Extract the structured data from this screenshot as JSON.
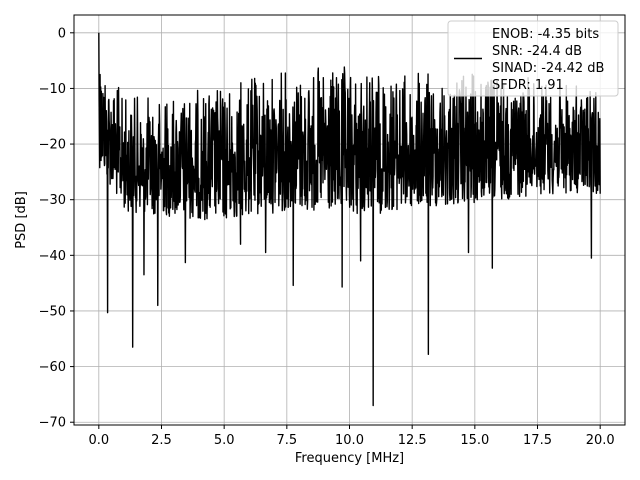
{
  "chart_data": {
    "type": "line",
    "title": "",
    "xlabel": "Frequency [MHz]",
    "ylabel": "PSD [dB]",
    "xlim": [
      -0.99,
      20.99
    ],
    "ylim": [
      -70.5,
      3.2
    ],
    "grid": true,
    "xticks": [
      0.0,
      2.5,
      5.0,
      7.5,
      10.0,
      12.5,
      15.0,
      17.5,
      20.0
    ],
    "xtick_labels": [
      "0.0",
      "2.5",
      "5.0",
      "7.5",
      "10.0",
      "12.5",
      "15.0",
      "17.5",
      "20.0"
    ],
    "yticks": [
      0,
      -10,
      -20,
      -30,
      -40,
      -50,
      -60,
      -70
    ],
    "ytick_labels": [
      "0",
      "−10",
      "−20",
      "−30",
      "−40",
      "−50",
      "−60",
      "−70"
    ],
    "legend": {
      "placement": "top-right",
      "entries": [
        "ENOB: -4.35 bits",
        "SNR: -24.4 dB",
        "SINAD: -24.42 dB",
        "SFDR: 1.91"
      ]
    },
    "series": [
      {
        "color": "#000000",
        "x_range": [
          0,
          20
        ],
        "n_points": 1600,
        "envelope": {
          "top": [
            [
              0,
              -3
            ],
            [
              1,
              -11
            ],
            [
              2.5,
              -11
            ],
            [
              5,
              -9
            ],
            [
              7.5,
              -6
            ],
            [
              10,
              -6
            ],
            [
              12.5,
              -7
            ],
            [
              15,
              -7
            ],
            [
              17.5,
              -8
            ],
            [
              20,
              -10
            ]
          ],
          "bottom": [
            [
              0,
              -24
            ],
            [
              1,
              -32
            ],
            [
              2.5,
              -33
            ],
            [
              5,
              -34
            ],
            [
              7.5,
              -32
            ],
            [
              10,
              -33
            ],
            [
              12.5,
              -32
            ],
            [
              15,
              -31
            ],
            [
              17.5,
              -29
            ],
            [
              20,
              -29
            ]
          ]
        },
        "peaks": [
          [
            0.0,
            0.0
          ],
          [
            0.05,
            -7.5
          ],
          [
            0.1,
            -10.5
          ]
        ],
        "dips": [
          [
            0.35,
            -50.3
          ],
          [
            1.35,
            -56.5
          ],
          [
            1.8,
            -43.5
          ],
          [
            2.35,
            -49.0
          ],
          [
            3.45,
            -41.3
          ],
          [
            5.65,
            -38.0
          ],
          [
            6.65,
            -39.5
          ],
          [
            7.75,
            -45.4
          ],
          [
            9.7,
            -45.7
          ],
          [
            10.45,
            -41.0
          ],
          [
            10.95,
            -67.0
          ],
          [
            13.15,
            -57.8
          ],
          [
            14.75,
            -39.5
          ],
          [
            15.7,
            -42.3
          ],
          [
            19.65,
            -40.5
          ]
        ]
      }
    ]
  }
}
